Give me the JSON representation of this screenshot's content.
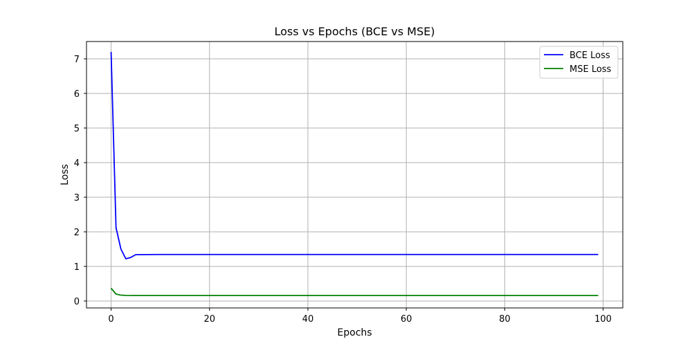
{
  "chart_data": {
    "type": "line",
    "title": "Loss vs Epochs (BCE vs MSE)",
    "xlabel": "Epochs",
    "ylabel": "Loss",
    "xlim": [
      -5,
      104
    ],
    "ylim": [
      -0.2,
      7.5
    ],
    "xticks": [
      0,
      20,
      40,
      60,
      80,
      100
    ],
    "yticks": [
      0,
      1,
      2,
      3,
      4,
      5,
      6,
      7
    ],
    "grid": true,
    "legend_position": "top-right",
    "series": [
      {
        "name": "BCE Loss",
        "color": "#0000ff",
        "points": [
          [
            0,
            7.2
          ],
          [
            1,
            2.12
          ],
          [
            2,
            1.5
          ],
          [
            3,
            1.22
          ],
          [
            4,
            1.26
          ],
          [
            5,
            1.34
          ],
          [
            10,
            1.345
          ],
          [
            20,
            1.345
          ],
          [
            40,
            1.345
          ],
          [
            60,
            1.345
          ],
          [
            80,
            1.345
          ],
          [
            99,
            1.345
          ]
        ]
      },
      {
        "name": "MSE Loss",
        "color": "#008000",
        "points": [
          [
            0,
            0.37
          ],
          [
            1,
            0.2
          ],
          [
            2,
            0.17
          ],
          [
            3,
            0.163
          ],
          [
            5,
            0.16
          ],
          [
            10,
            0.16
          ],
          [
            20,
            0.16
          ],
          [
            40,
            0.16
          ],
          [
            60,
            0.16
          ],
          [
            80,
            0.16
          ],
          [
            99,
            0.16
          ]
        ]
      }
    ]
  }
}
